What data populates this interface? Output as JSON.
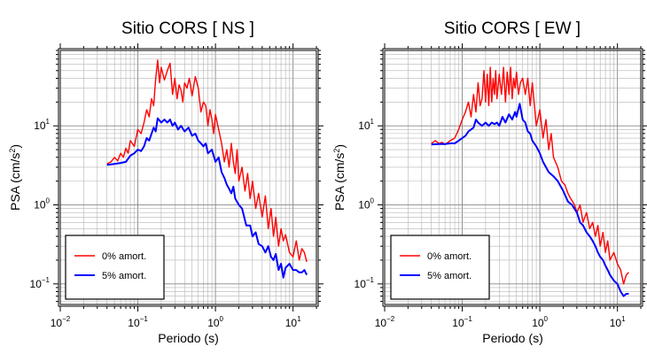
{
  "chart_data": [
    {
      "type": "line",
      "title": "Sitio CORS [ NS ]",
      "xlabel": "Periodo (s)",
      "ylabel_text": "PSA (cm/s",
      "ylabel_sup": "2",
      "ylabel_end": ")",
      "x_scale": "log",
      "y_scale": "log",
      "xlim": [
        0.01,
        20
      ],
      "ylim": [
        0.055,
        90
      ],
      "grid": true,
      "legend_position": "bottom-left",
      "x_ticks": [
        {
          "value": 0.01,
          "base": "10",
          "exp": "−2"
        },
        {
          "value": 0.1,
          "base": "10",
          "exp": "−1"
        },
        {
          "value": 1,
          "base": "10",
          "exp": "0"
        },
        {
          "value": 10,
          "base": "10",
          "exp": "1"
        }
      ],
      "y_ticks": [
        {
          "value": 0.1,
          "base": "10",
          "exp": "−1"
        },
        {
          "value": 1,
          "base": "10",
          "exp": "0"
        },
        {
          "value": 10,
          "base": "10",
          "exp": "1"
        }
      ],
      "series": [
        {
          "name": "0% amort.",
          "color": "#ff0000",
          "x": [
            0.04,
            0.045,
            0.05,
            0.055,
            0.06,
            0.065,
            0.07,
            0.075,
            0.08,
            0.09,
            0.1,
            0.11,
            0.12,
            0.13,
            0.14,
            0.15,
            0.16,
            0.17,
            0.18,
            0.19,
            0.2,
            0.22,
            0.24,
            0.26,
            0.28,
            0.3,
            0.32,
            0.34,
            0.36,
            0.38,
            0.4,
            0.43,
            0.46,
            0.5,
            0.55,
            0.6,
            0.65,
            0.7,
            0.75,
            0.8,
            0.85,
            0.9,
            0.95,
            1.0,
            1.1,
            1.2,
            1.3,
            1.4,
            1.5,
            1.6,
            1.7,
            1.8,
            1.9,
            2.0,
            2.2,
            2.4,
            2.6,
            2.8,
            3.0,
            3.3,
            3.6,
            4.0,
            4.4,
            4.8,
            5.2,
            5.6,
            6.0,
            6.5,
            7.0,
            7.5,
            8.0,
            9.0,
            10.0,
            11.0,
            12.0,
            13.0,
            14.0,
            15.0
          ],
          "y": [
            3.3,
            3.5,
            4.0,
            3.6,
            4.5,
            4.0,
            5.2,
            4.5,
            6.5,
            5.5,
            9.0,
            8.0,
            11.0,
            16.0,
            13.0,
            22.0,
            18.0,
            40.0,
            68.0,
            35.0,
            55.0,
            38.0,
            50.0,
            62.0,
            25.0,
            40.0,
            22.0,
            33.0,
            28.0,
            20.0,
            35.0,
            30.0,
            40.0,
            24.0,
            42.0,
            30.0,
            15.0,
            20.0,
            18.0,
            10.0,
            16.0,
            12.0,
            8.0,
            14.0,
            9.0,
            6.0,
            3.5,
            5.0,
            3.0,
            6.0,
            3.5,
            2.5,
            5.0,
            2.0,
            3.0,
            1.5,
            2.5,
            1.2,
            2.0,
            0.9,
            1.4,
            0.7,
            1.3,
            0.5,
            0.9,
            0.4,
            0.7,
            0.3,
            0.5,
            0.35,
            0.42,
            0.25,
            0.22,
            0.35,
            0.2,
            0.28,
            0.25,
            0.19
          ]
        },
        {
          "name": "5% amort.",
          "color": "#0000ff",
          "x": [
            0.04,
            0.05,
            0.06,
            0.07,
            0.08,
            0.09,
            0.1,
            0.11,
            0.12,
            0.13,
            0.14,
            0.15,
            0.16,
            0.17,
            0.18,
            0.2,
            0.22,
            0.24,
            0.26,
            0.28,
            0.3,
            0.33,
            0.36,
            0.4,
            0.45,
            0.5,
            0.55,
            0.6,
            0.65,
            0.7,
            0.75,
            0.8,
            0.9,
            1.0,
            1.1,
            1.2,
            1.3,
            1.4,
            1.5,
            1.6,
            1.7,
            1.8,
            2.0,
            2.2,
            2.5,
            2.8,
            3.0,
            3.3,
            3.6,
            4.0,
            4.4,
            4.8,
            5.2,
            5.6,
            6.0,
            6.5,
            7.0,
            7.5,
            8.0,
            9.0,
            10.0,
            11.0,
            12.0,
            13.0,
            14.0,
            15.0
          ],
          "y": [
            3.2,
            3.3,
            3.4,
            3.5,
            4.2,
            4.5,
            5.0,
            4.8,
            5.5,
            7.0,
            6.5,
            8.0,
            9.5,
            8.5,
            12.5,
            11.0,
            12.0,
            11.0,
            12.0,
            10.0,
            11.0,
            9.0,
            10.0,
            8.5,
            9.5,
            7.5,
            8.0,
            6.5,
            6.0,
            5.5,
            6.0,
            4.5,
            5.0,
            3.5,
            4.0,
            2.6,
            2.2,
            1.8,
            1.6,
            1.4,
            1.7,
            1.2,
            1.0,
            0.9,
            0.55,
            0.55,
            0.4,
            0.45,
            0.32,
            0.3,
            0.25,
            0.3,
            0.22,
            0.2,
            0.24,
            0.15,
            0.18,
            0.12,
            0.16,
            0.18,
            0.15,
            0.15,
            0.14,
            0.14,
            0.15,
            0.13
          ]
        }
      ]
    },
    {
      "type": "line",
      "title": "Sitio CORS [ EW ]",
      "xlabel": "Periodo (s)",
      "ylabel_text": "PSA (cm/s",
      "ylabel_sup": "2",
      "ylabel_end": ")",
      "x_scale": "log",
      "y_scale": "log",
      "xlim": [
        0.01,
        20
      ],
      "ylim": [
        0.055,
        90
      ],
      "grid": true,
      "legend_position": "bottom-left",
      "x_ticks": [
        {
          "value": 0.01,
          "base": "10",
          "exp": "−2"
        },
        {
          "value": 0.1,
          "base": "10",
          "exp": "−1"
        },
        {
          "value": 1,
          "base": "10",
          "exp": "0"
        },
        {
          "value": 10,
          "base": "10",
          "exp": "1"
        }
      ],
      "y_ticks": [
        {
          "value": 0.1,
          "base": "10",
          "exp": "−1"
        },
        {
          "value": 1,
          "base": "10",
          "exp": "0"
        },
        {
          "value": 10,
          "base": "10",
          "exp": "1"
        }
      ],
      "series": [
        {
          "name": "0% amort.",
          "color": "#ff0000",
          "x": [
            0.04,
            0.045,
            0.05,
            0.055,
            0.06,
            0.07,
            0.08,
            0.09,
            0.1,
            0.11,
            0.12,
            0.13,
            0.14,
            0.15,
            0.16,
            0.17,
            0.18,
            0.19,
            0.2,
            0.21,
            0.22,
            0.23,
            0.24,
            0.25,
            0.26,
            0.27,
            0.28,
            0.3,
            0.32,
            0.34,
            0.36,
            0.38,
            0.4,
            0.42,
            0.44,
            0.46,
            0.48,
            0.5,
            0.53,
            0.56,
            0.6,
            0.65,
            0.7,
            0.75,
            0.8,
            0.9,
            1.0,
            1.1,
            1.2,
            1.3,
            1.4,
            1.5,
            1.7,
            1.9,
            2.1,
            2.3,
            2.5,
            2.8,
            3.0,
            3.3,
            3.6,
            4.0,
            4.4,
            4.8,
            5.2,
            5.6,
            6.0,
            6.5,
            7.0,
            7.5,
            8.0,
            9.0,
            10.0,
            11.0,
            12.0,
            13.0,
            14.0
          ],
          "y": [
            6.0,
            6.5,
            6.0,
            6.2,
            5.8,
            6.5,
            7.0,
            9.0,
            12.0,
            15.0,
            20.0,
            13.0,
            25.0,
            15.0,
            35.0,
            18.0,
            22.0,
            50.0,
            20.0,
            45.0,
            18.0,
            55.0,
            20.0,
            40.0,
            25.0,
            50.0,
            22.0,
            45.0,
            25.0,
            55.0,
            20.0,
            48.0,
            25.0,
            55.0,
            22.0,
            40.0,
            30.0,
            48.0,
            25.0,
            35.0,
            40.0,
            25.0,
            40.0,
            18.0,
            35.0,
            10.0,
            16.0,
            7.0,
            12.0,
            5.0,
            8.0,
            4.0,
            3.0,
            2.0,
            1.8,
            1.4,
            1.2,
            1.0,
            0.8,
            1.0,
            0.6,
            0.8,
            0.5,
            0.6,
            0.4,
            0.55,
            0.3,
            0.45,
            0.25,
            0.35,
            0.2,
            0.25,
            0.18,
            0.15,
            0.1,
            0.13,
            0.14
          ]
        },
        {
          "name": "5% amort.",
          "color": "#0000ff",
          "x": [
            0.04,
            0.05,
            0.06,
            0.07,
            0.08,
            0.09,
            0.1,
            0.11,
            0.12,
            0.13,
            0.14,
            0.15,
            0.16,
            0.18,
            0.2,
            0.22,
            0.24,
            0.26,
            0.28,
            0.3,
            0.33,
            0.36,
            0.4,
            0.44,
            0.48,
            0.5,
            0.55,
            0.6,
            0.65,
            0.7,
            0.75,
            0.8,
            0.9,
            1.0,
            1.1,
            1.2,
            1.3,
            1.5,
            1.7,
            2.0,
            2.3,
            2.6,
            3.0,
            3.3,
            3.6,
            4.0,
            4.4,
            4.8,
            5.2,
            5.6,
            6.0,
            6.5,
            7.0,
            7.5,
            8.0,
            9.0,
            10.0,
            11.0,
            12.0,
            13.0,
            14.0
          ],
          "y": [
            5.8,
            5.9,
            5.9,
            6.0,
            6.0,
            6.5,
            7.0,
            7.5,
            8.5,
            9.0,
            9.5,
            12.0,
            11.0,
            10.0,
            11.0,
            10.0,
            11.0,
            10.5,
            11.0,
            10.0,
            13.0,
            11.0,
            14.0,
            12.0,
            15.0,
            13.0,
            19.0,
            12.0,
            11.0,
            8.5,
            8.0,
            6.5,
            5.5,
            4.5,
            3.5,
            3.0,
            2.6,
            2.3,
            2.0,
            1.5,
            1.1,
            1.0,
            0.8,
            0.6,
            0.55,
            0.45,
            0.4,
            0.35,
            0.3,
            0.25,
            0.22,
            0.2,
            0.17,
            0.15,
            0.13,
            0.11,
            0.1,
            0.08,
            0.07,
            0.075,
            0.075
          ]
        }
      ]
    }
  ]
}
